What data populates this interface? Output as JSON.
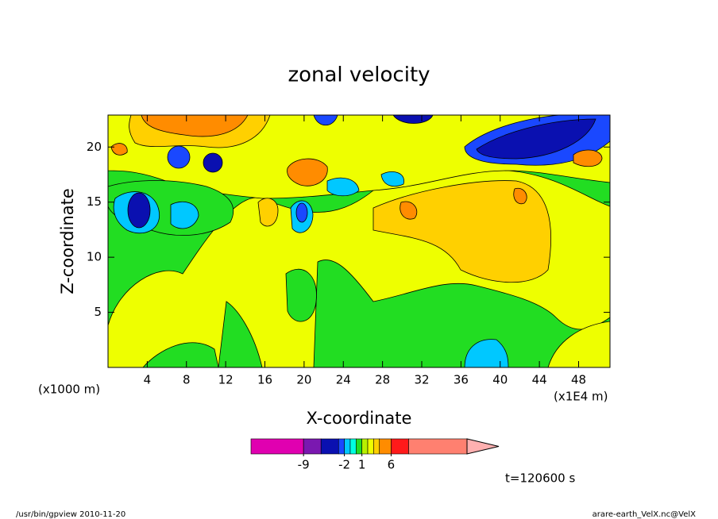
{
  "chart_data": {
    "type": "contour",
    "title": "zonal velocity",
    "x_label": "X-coordinate",
    "y_label": "Z-coordinate",
    "x_unit": "(x1000 m)",
    "x_scale": "(x1E4 m)",
    "xlim": [
      0,
      51.2
    ],
    "xticks": [
      4,
      8,
      12,
      16,
      20,
      24,
      28,
      32,
      36,
      40,
      44,
      48
    ],
    "ylim": [
      0,
      22.9
    ],
    "yticks": [
      5,
      10,
      15,
      20
    ],
    "colorbar": {
      "levels": [
        -18,
        -9,
        -6,
        -3,
        -2,
        -1,
        0,
        1,
        2,
        3,
        4,
        6,
        9,
        19
      ],
      "colors": [
        "#e000b0",
        "#7a18b0",
        "#0a10b0",
        "#1a48ff",
        "#00c8ff",
        "#00ffe0",
        "#22dd22",
        "#b8f000",
        "#eeff00",
        "#ffd000",
        "#ff8c00",
        "#ff1a1a",
        "#ff8070"
      ],
      "ticks": [
        -9,
        -2,
        1,
        6
      ]
    },
    "time_label": "t=120600 s",
    "footer_left": "/usr/bin/gpview  2010-11-20",
    "footer_right": "arare-earth_VelX.nc@VelX"
  }
}
